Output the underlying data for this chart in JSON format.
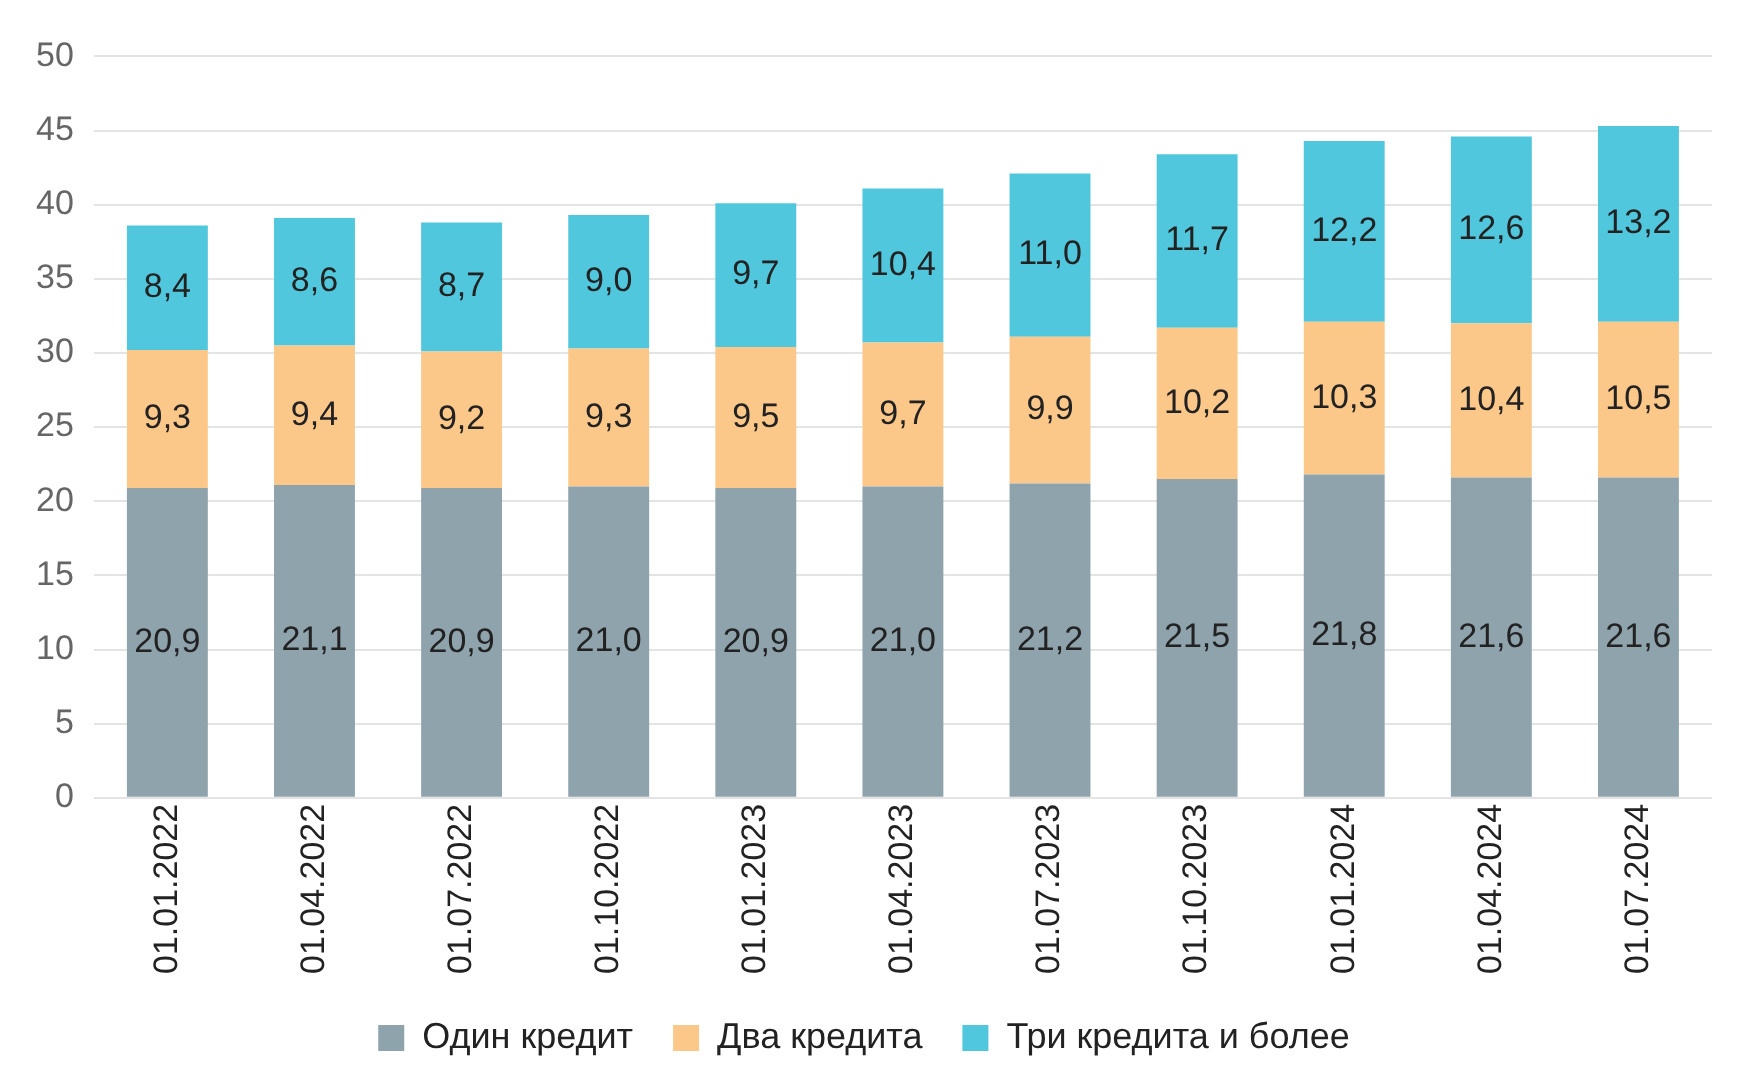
{
  "chart_data": {
    "type": "bar",
    "stacked": true,
    "categories": [
      "01.01.2022",
      "01.04.2022",
      "01.07.2022",
      "01.10.2022",
      "01.01.2023",
      "01.04.2023",
      "01.07.2023",
      "01.10.2023",
      "01.01.2024",
      "01.04.2024",
      "01.07.2024"
    ],
    "series": [
      {
        "name": "Один кредит",
        "color": "#8fa3ad",
        "values": [
          20.9,
          21.1,
          20.9,
          21.0,
          20.9,
          21.0,
          21.2,
          21.5,
          21.8,
          21.6,
          21.6
        ],
        "value_labels": [
          "20,9",
          "21,1",
          "20,9",
          "21,0",
          "20,9",
          "21,0",
          "21,2",
          "21,5",
          "21,8",
          "21,6",
          "21,6"
        ]
      },
      {
        "name": "Два кредита",
        "color": "#fcc88a",
        "values": [
          9.3,
          9.4,
          9.2,
          9.3,
          9.5,
          9.7,
          9.9,
          10.2,
          10.3,
          10.4,
          10.5
        ],
        "value_labels": [
          "9,3",
          "9,4",
          "9,2",
          "9,3",
          "9,5",
          "9,7",
          "9,9",
          "10,2",
          "10,3",
          "10,4",
          "10,5"
        ]
      },
      {
        "name": "Три кредита и более",
        "color": "#50c7dc",
        "values": [
          8.4,
          8.6,
          8.7,
          9.0,
          9.7,
          10.4,
          11.0,
          11.7,
          12.2,
          12.6,
          13.2
        ],
        "value_labels": [
          "8,4",
          "8,6",
          "8,7",
          "9,0",
          "9,7",
          "10,4",
          "11,0",
          "11,7",
          "12,2",
          "12,6",
          "13,2"
        ]
      }
    ],
    "ylim": [
      0,
      50
    ],
    "yticks": [
      0,
      5,
      10,
      15,
      20,
      25,
      30,
      35,
      40,
      45,
      50
    ],
    "grid": "y",
    "legend": "bottom"
  }
}
